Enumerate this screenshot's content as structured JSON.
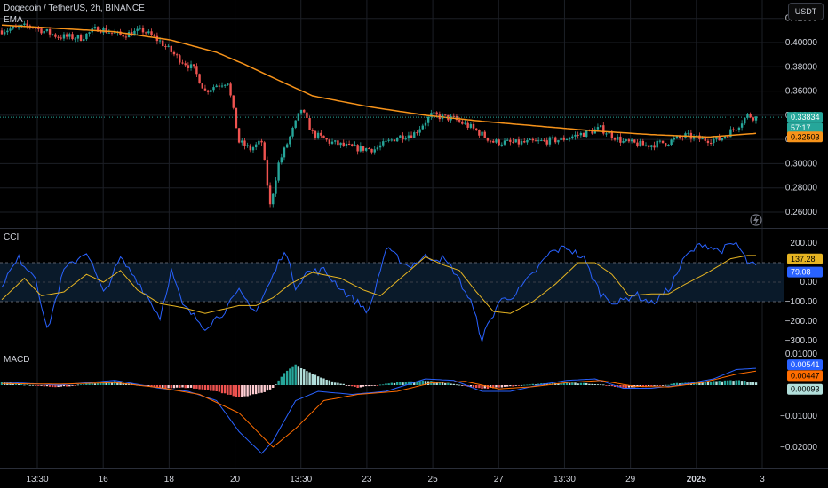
{
  "header": {
    "symbol_line": "Dogecoin / TetherUS, 2h, BINANCE",
    "ema_label": "EMA",
    "currency": "USDT"
  },
  "colors": {
    "up": "#26a69a",
    "down": "#ef5350",
    "ema": "#f7931a",
    "cci": "#2962ff",
    "cci_ma": "#e6b422",
    "macd": "#2962ff",
    "signal": "#ff6d00",
    "bg": "#000000",
    "grid": "#1c1f26"
  },
  "chart_data": [
    {
      "type": "candlestick",
      "pane": "price",
      "series_names": [
        "EMA"
      ],
      "ylim": [
        0.25,
        0.42
      ],
      "y_ticks": [
        0.26,
        0.28,
        0.3,
        0.32,
        0.34,
        0.36,
        0.38,
        0.4,
        0.42
      ],
      "y_tick_labels": [
        "0.26000",
        "0.28000",
        "0.30000",
        "0.32000",
        "0.34000",
        "0.36000",
        "0.38000",
        "0.40000",
        "0.42000"
      ],
      "price_tag": "0.33834",
      "countdown_tag": "57:17",
      "ema_tag": "0.32503",
      "last_price": 0.33834,
      "ema_last": 0.32503,
      "anchors_close": [
        [
          0,
          0.41
        ],
        [
          10,
          0.414
        ],
        [
          20,
          0.405
        ],
        [
          28,
          0.404
        ],
        [
          34,
          0.412
        ],
        [
          42,
          0.406
        ],
        [
          50,
          0.41
        ],
        [
          56,
          0.401
        ],
        [
          62,
          0.388
        ],
        [
          68,
          0.378
        ],
        [
          72,
          0.36
        ],
        [
          76,
          0.365
        ],
        [
          80,
          0.368
        ],
        [
          84,
          0.318
        ],
        [
          88,
          0.312
        ],
        [
          92,
          0.318
        ],
        [
          95,
          0.265
        ],
        [
          98,
          0.3
        ],
        [
          102,
          0.322
        ],
        [
          106,
          0.345
        ],
        [
          110,
          0.325
        ],
        [
          116,
          0.318
        ],
        [
          124,
          0.313
        ],
        [
          132,
          0.312
        ],
        [
          140,
          0.322
        ],
        [
          146,
          0.325
        ],
        [
          152,
          0.34
        ],
        [
          160,
          0.337
        ],
        [
          166,
          0.33
        ],
        [
          174,
          0.318
        ],
        [
          182,
          0.317
        ],
        [
          190,
          0.318
        ],
        [
          198,
          0.32
        ],
        [
          206,
          0.325
        ],
        [
          212,
          0.329
        ],
        [
          220,
          0.318
        ],
        [
          228,
          0.315
        ],
        [
          236,
          0.318
        ],
        [
          242,
          0.323
        ],
        [
          248,
          0.32
        ],
        [
          254,
          0.32
        ],
        [
          260,
          0.33
        ],
        [
          264,
          0.34
        ],
        [
          267,
          0.338
        ]
      ],
      "ema_anchors": [
        [
          0,
          0.4145
        ],
        [
          40,
          0.409
        ],
        [
          60,
          0.402
        ],
        [
          76,
          0.392
        ],
        [
          86,
          0.382
        ],
        [
          96,
          0.371
        ],
        [
          110,
          0.356
        ],
        [
          130,
          0.347
        ],
        [
          150,
          0.34
        ],
        [
          170,
          0.335
        ],
        [
          190,
          0.331
        ],
        [
          210,
          0.327
        ],
        [
          230,
          0.324
        ],
        [
          250,
          0.322
        ],
        [
          267,
          0.325
        ]
      ],
      "candle_count": 268
    },
    {
      "type": "line",
      "pane": "indicator",
      "name": "CCI",
      "ylim": [
        -320,
        220
      ],
      "y_ticks": [
        200,
        100,
        0,
        -100,
        -200,
        -300
      ],
      "y_tick_labels": [
        "200.00",
        "",
        "0.00",
        "−100.00",
        "−200.00",
        "−300.00"
      ],
      "band": [
        -100,
        100
      ],
      "cci_tag": "79.08",
      "ma_tag": "137.28",
      "cci_last": 79.08,
      "ma_last": 137.28,
      "cci_anchors": [
        [
          0,
          -10
        ],
        [
          6,
          120
        ],
        [
          12,
          30
        ],
        [
          16,
          -250
        ],
        [
          22,
          60
        ],
        [
          30,
          160
        ],
        [
          36,
          -60
        ],
        [
          42,
          120
        ],
        [
          48,
          10
        ],
        [
          56,
          -180
        ],
        [
          60,
          60
        ],
        [
          64,
          -120
        ],
        [
          72,
          -230
        ],
        [
          78,
          -160
        ],
        [
          84,
          -50
        ],
        [
          90,
          -150
        ],
        [
          96,
          30
        ],
        [
          100,
          170
        ],
        [
          104,
          -20
        ],
        [
          108,
          50
        ],
        [
          114,
          60
        ],
        [
          122,
          -60
        ],
        [
          130,
          -150
        ],
        [
          136,
          170
        ],
        [
          144,
          80
        ],
        [
          150,
          130
        ],
        [
          156,
          120
        ],
        [
          160,
          60
        ],
        [
          166,
          -100
        ],
        [
          170,
          -290
        ],
        [
          176,
          -100
        ],
        [
          182,
          -60
        ],
        [
          188,
          40
        ],
        [
          194,
          150
        ],
        [
          200,
          180
        ],
        [
          206,
          120
        ],
        [
          212,
          -60
        ],
        [
          218,
          -110
        ],
        [
          224,
          -60
        ],
        [
          230,
          -110
        ],
        [
          236,
          -40
        ],
        [
          242,
          130
        ],
        [
          248,
          200
        ],
        [
          254,
          160
        ],
        [
          260,
          200
        ],
        [
          264,
          100
        ],
        [
          267,
          79
        ]
      ],
      "ma_anchors": [
        [
          0,
          -90
        ],
        [
          8,
          20
        ],
        [
          14,
          -70
        ],
        [
          22,
          -50
        ],
        [
          30,
          40
        ],
        [
          36,
          0
        ],
        [
          42,
          60
        ],
        [
          48,
          -40
        ],
        [
          56,
          -110
        ],
        [
          64,
          -130
        ],
        [
          72,
          -160
        ],
        [
          78,
          -140
        ],
        [
          84,
          -120
        ],
        [
          90,
          -120
        ],
        [
          96,
          -80
        ],
        [
          102,
          -10
        ],
        [
          110,
          50
        ],
        [
          120,
          20
        ],
        [
          128,
          -40
        ],
        [
          134,
          -70
        ],
        [
          142,
          30
        ],
        [
          150,
          130
        ],
        [
          156,
          90
        ],
        [
          162,
          60
        ],
        [
          168,
          -50
        ],
        [
          174,
          -150
        ],
        [
          180,
          -160
        ],
        [
          188,
          -100
        ],
        [
          196,
          -10
        ],
        [
          204,
          100
        ],
        [
          210,
          100
        ],
        [
          216,
          40
        ],
        [
          222,
          -70
        ],
        [
          230,
          -60
        ],
        [
          236,
          -60
        ],
        [
          242,
          -10
        ],
        [
          250,
          50
        ],
        [
          258,
          120
        ],
        [
          264,
          137
        ],
        [
          267,
          137
        ]
      ]
    },
    {
      "type": "bar+line",
      "pane": "indicator",
      "name": "MACD",
      "ylim": [
        -0.024,
        0.0105
      ],
      "y_ticks": [
        0.01,
        0.0,
        -0.01,
        -0.02
      ],
      "y_tick_labels": [
        "0.01000",
        "",
        "−0.01000",
        "−0.02000"
      ],
      "macd_tag": "0.00541",
      "signal_tag": "0.00447",
      "hist_tag": "0.00093",
      "macd_last": 0.00541,
      "signal_last": 0.00447,
      "hist_last": 0.00093,
      "macd_anchors": [
        [
          0,
          0.001
        ],
        [
          20,
          0.0
        ],
        [
          40,
          0.0015
        ],
        [
          56,
          -0.001
        ],
        [
          66,
          -0.002
        ],
        [
          76,
          -0.005
        ],
        [
          84,
          -0.015
        ],
        [
          92,
          -0.022
        ],
        [
          96,
          -0.018
        ],
        [
          104,
          -0.005
        ],
        [
          112,
          -0.002
        ],
        [
          124,
          -0.003
        ],
        [
          136,
          -0.002
        ],
        [
          150,
          0.002
        ],
        [
          160,
          0.0015
        ],
        [
          170,
          -0.002
        ],
        [
          180,
          -0.002
        ],
        [
          190,
          0.0
        ],
        [
          200,
          0.0015
        ],
        [
          210,
          0.002
        ],
        [
          220,
          -0.001
        ],
        [
          230,
          -0.001
        ],
        [
          240,
          0.0
        ],
        [
          252,
          0.002
        ],
        [
          260,
          0.005
        ],
        [
          267,
          0.0054
        ]
      ],
      "signal_anchors": [
        [
          0,
          0.0005
        ],
        [
          20,
          0.0003
        ],
        [
          40,
          0.0008
        ],
        [
          56,
          -0.0008
        ],
        [
          70,
          -0.003
        ],
        [
          84,
          -0.009
        ],
        [
          96,
          -0.02
        ],
        [
          104,
          -0.014
        ],
        [
          114,
          -0.005
        ],
        [
          126,
          -0.003
        ],
        [
          140,
          -0.002
        ],
        [
          152,
          0.0007
        ],
        [
          164,
          0.0012
        ],
        [
          176,
          -0.0012
        ],
        [
          188,
          -0.0005
        ],
        [
          200,
          0.0008
        ],
        [
          212,
          0.0015
        ],
        [
          224,
          -0.0004
        ],
        [
          236,
          -0.0006
        ],
        [
          248,
          0.0008
        ],
        [
          260,
          0.0035
        ],
        [
          267,
          0.0045
        ]
      ],
      "hist_anchors": [
        [
          0,
          0.0008
        ],
        [
          20,
          -0.0006
        ],
        [
          40,
          0.0012
        ],
        [
          56,
          -0.001
        ],
        [
          66,
          -0.0008
        ],
        [
          76,
          -0.002
        ],
        [
          84,
          -0.004
        ],
        [
          92,
          -0.0025
        ],
        [
          96,
          -0.001
        ],
        [
          100,
          0.004
        ],
        [
          104,
          0.0065
        ],
        [
          110,
          0.0035
        ],
        [
          118,
          0.0008
        ],
        [
          126,
          -0.0008
        ],
        [
          140,
          0.0008
        ],
        [
          150,
          0.0015
        ],
        [
          160,
          0.0004
        ],
        [
          170,
          -0.0012
        ],
        [
          180,
          -0.0004
        ],
        [
          190,
          0.0004
        ],
        [
          200,
          0.0007
        ],
        [
          210,
          0.0004
        ],
        [
          220,
          -0.0008
        ],
        [
          230,
          -0.0004
        ],
        [
          240,
          0.0006
        ],
        [
          252,
          0.0012
        ],
        [
          260,
          0.0016
        ],
        [
          267,
          0.0009
        ]
      ]
    }
  ],
  "x_axis": {
    "labels": [
      "13:30",
      "16",
      "18",
      "20",
      "13:30",
      "23",
      "25",
      "27",
      "13:30",
      "29",
      "2025",
      "3"
    ],
    "bold_label": "2025"
  }
}
